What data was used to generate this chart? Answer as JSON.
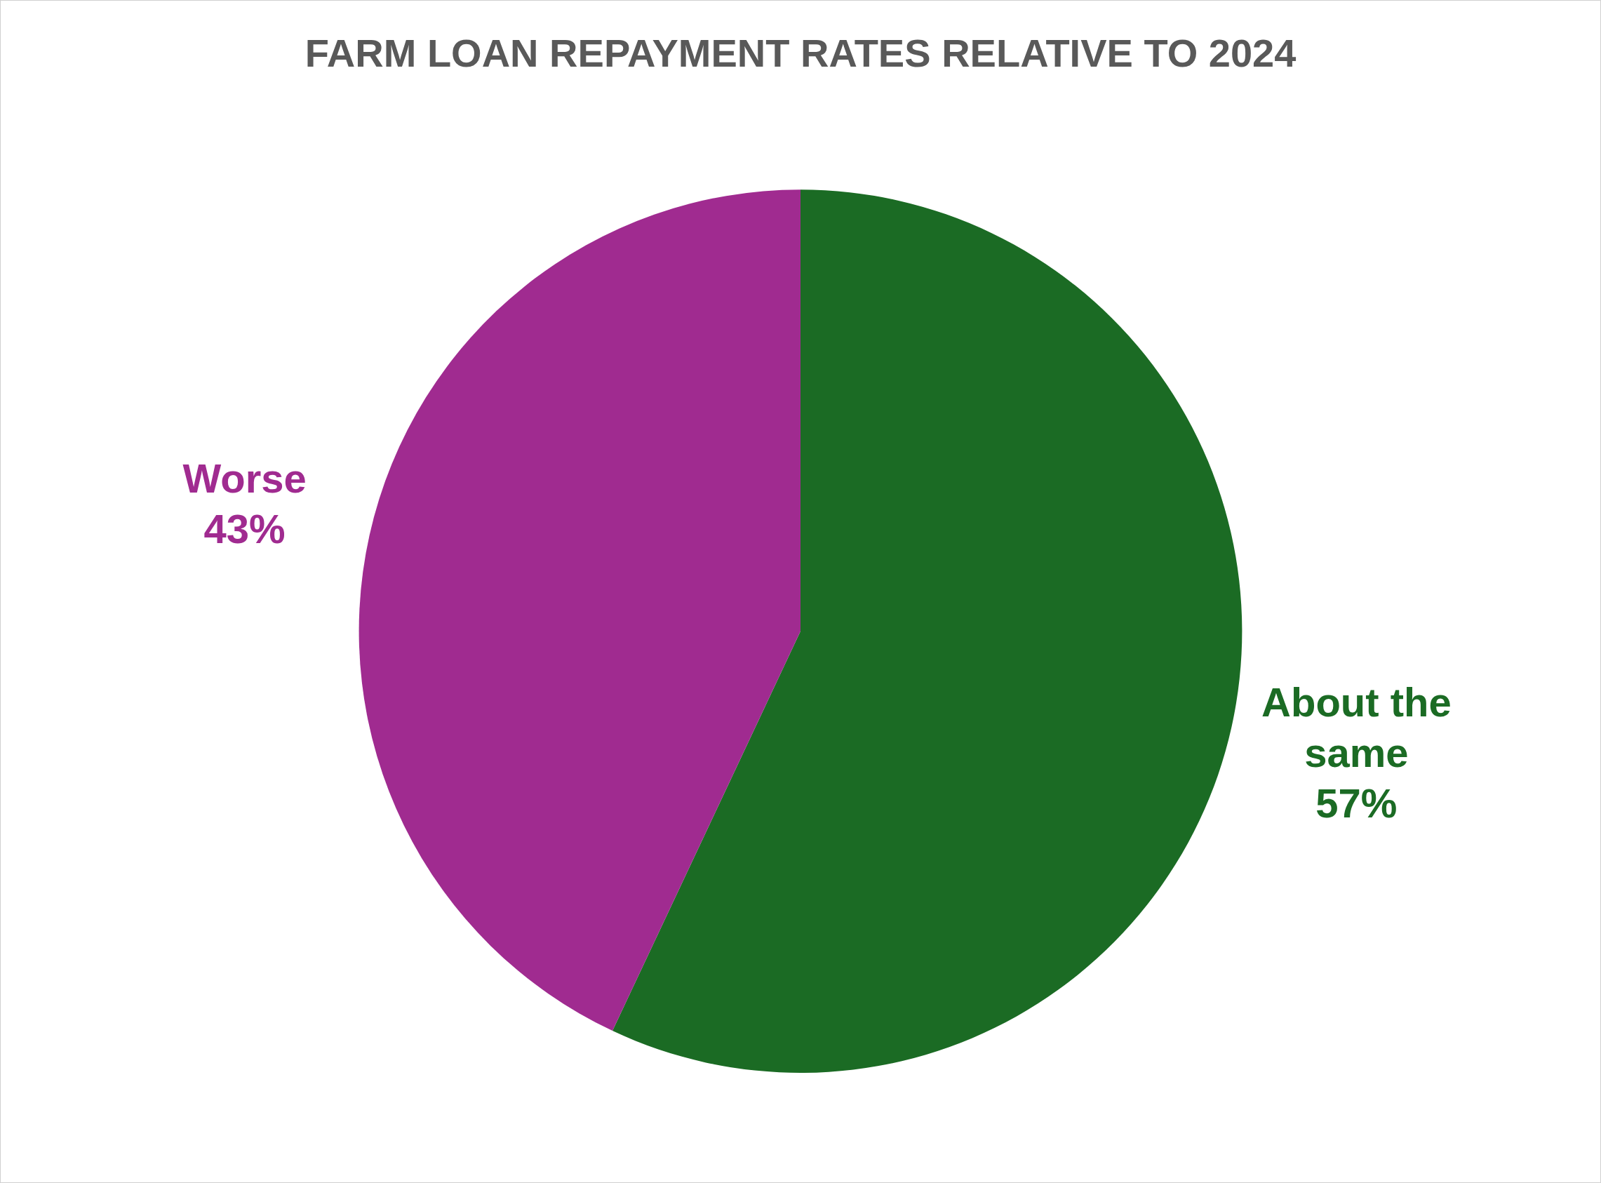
{
  "chart_data": {
    "type": "pie",
    "title": "FARM LOAN REPAYMENT RATES RELATIVE TO 2024",
    "categories": [
      "About the same",
      "Worse"
    ],
    "values": [
      57,
      43
    ],
    "value_labels": [
      "57%",
      "43%"
    ],
    "colors": [
      "#1b6b24",
      "#a02b90"
    ],
    "legend": false
  }
}
